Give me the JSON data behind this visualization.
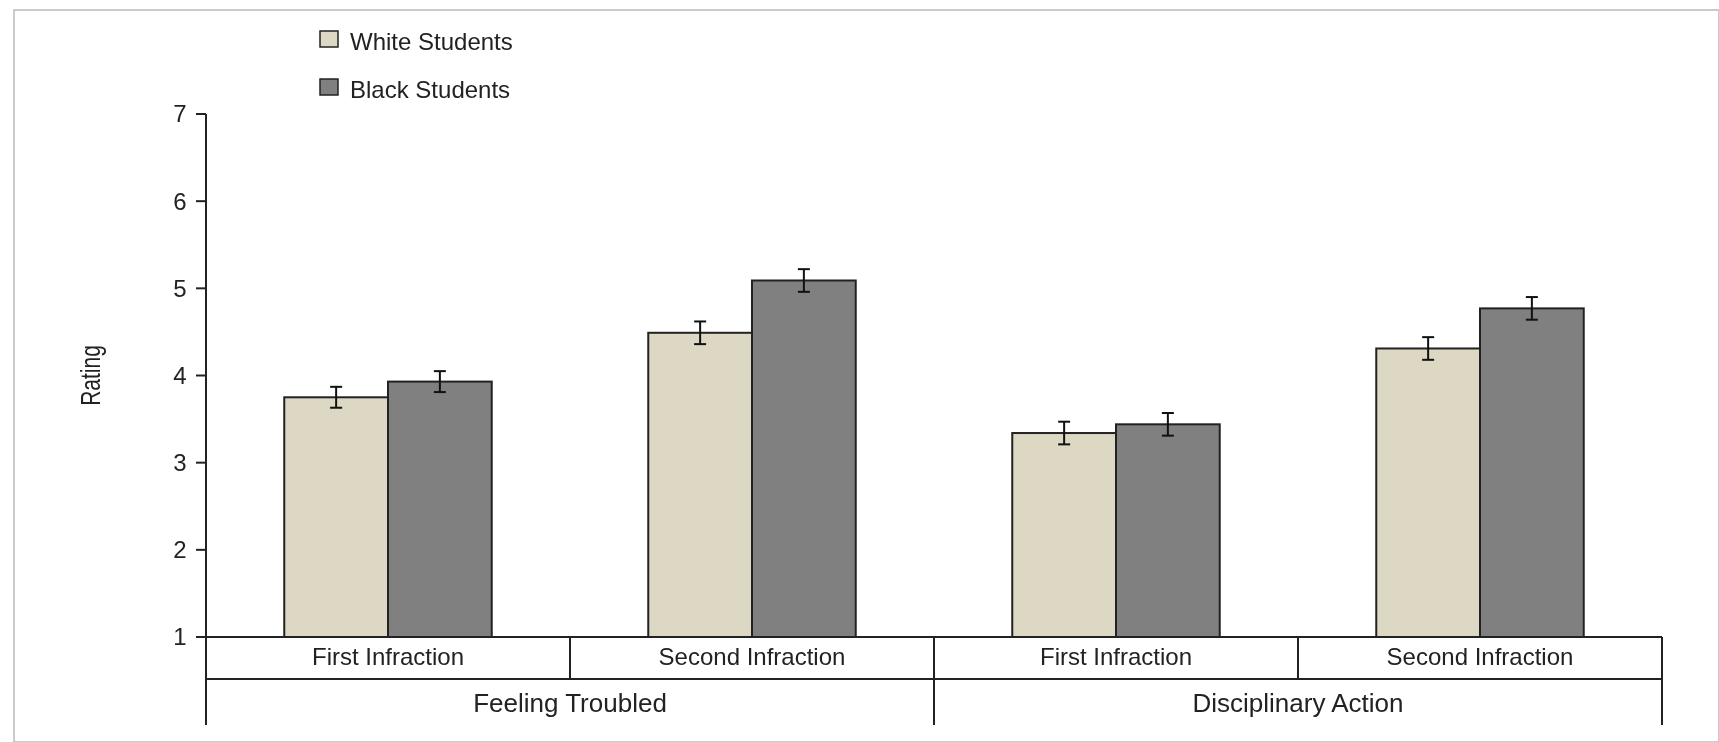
{
  "chart_data": {
    "type": "bar",
    "ylabel": "Rating",
    "categories": [
      "First Infraction",
      "Second Infraction",
      "First Infraction",
      "Second Infraction"
    ],
    "annotations": [
      "Feeling Troubled",
      "Disciplinary Action"
    ],
    "series": [
      {
        "name": "White Students",
        "color": "#ddd8c4",
        "values": [
          3.75,
          4.49,
          3.34,
          4.31
        ],
        "errors": [
          0.12,
          0.13,
          0.13,
          0.13
        ]
      },
      {
        "name": "Black Students",
        "color": "#808080",
        "values": [
          3.93,
          5.09,
          3.44,
          4.77
        ],
        "errors": [
          0.12,
          0.13,
          0.13,
          0.13
        ]
      }
    ],
    "ylim": [
      1,
      7
    ],
    "yticks": [
      1,
      2,
      3,
      4,
      5,
      6,
      7
    ],
    "legend": "top left"
  }
}
